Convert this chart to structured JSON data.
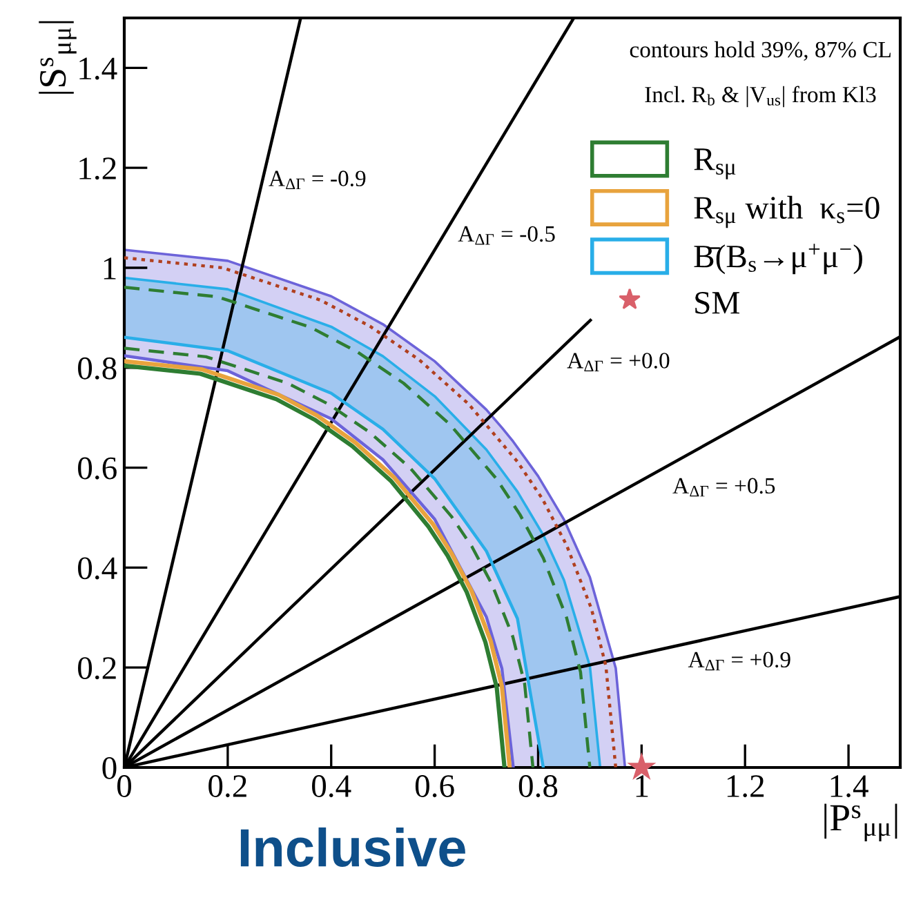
{
  "chart_data": {
    "type": "line",
    "xlabel": "|P$^{s}$$_{μμ}$|",
    "ylabel": "|S$^{s}$$_{μμ}$|",
    "subtitle": "Inclusive",
    "xlim": [
      0,
      1.5
    ],
    "ylim": [
      0,
      1.5
    ],
    "xticks": [
      0,
      0.2,
      0.4,
      0.6,
      0.8,
      1,
      1.2,
      1.4
    ],
    "yticks": [
      0,
      0.2,
      0.4,
      0.6,
      0.8,
      1,
      1.2,
      1.4
    ],
    "legend": "top right",
    "annotations": [
      "contours hold 39%, 87% CL",
      "Incl. R$_{b}$ & |V$_{us}$| from Kl3",
      "A$_{ΔΓ}$ = -0.9",
      "A$_{ΔΓ}$ = -0.5",
      "A$_{ΔΓ}$ = +0.0",
      "A$_{ΔΓ}$ = +0.5",
      "A$_{ΔΓ}$ = +0.9"
    ],
    "series": [
      {
        "name": "R$_{sμ}$",
        "color": "#2e7d32",
        "line_style": "solid",
        "x": [
          0,
          0.147,
          0.294,
          0.368,
          0.441,
          0.515,
          0.588,
          0.625,
          0.662,
          0.698,
          0.72,
          0.735
        ],
        "values": [
          0.804,
          0.788,
          0.737,
          0.696,
          0.643,
          0.574,
          0.482,
          0.424,
          0.351,
          0.251,
          0.16,
          0
        ]
      },
      {
        "name": "R$_{sμ}$ with  κ$_{s}$=0",
        "color": "#e8a33d",
        "line_style": "solid",
        "x": [
          0,
          0.149,
          0.298,
          0.373,
          0.447,
          0.522,
          0.596,
          0.633,
          0.671,
          0.708,
          0.73,
          0.745
        ],
        "values": [
          0.813,
          0.797,
          0.746,
          0.704,
          0.65,
          0.58,
          0.488,
          0.428,
          0.354,
          0.254,
          0.162,
          0
        ]
      },
      {
        "name": "B̄(B$_{s}$→μ$^{+}$μ$^{−}$)",
        "color": "#29aee8",
        "line_style": "solid",
        "x": [
          0,
          0.2,
          0.4,
          0.5,
          0.6,
          0.7,
          0.76,
          0.81,
          0.85,
          0.9,
          0.92
        ],
        "lower": [
          0.861,
          0.834,
          0.749,
          0.677,
          0.578,
          0.433,
          0.298,
          0,
          0,
          0,
          0
        ],
        "upper": [
          0.98,
          0.957,
          0.882,
          0.823,
          0.743,
          0.636,
          0.552,
          0.465,
          0.375,
          0.203,
          0
        ],
        "values": [
          0.98,
          0.957,
          0.882,
          0.823,
          0.743,
          0.636,
          0.552,
          0.465,
          0.375,
          0.203,
          0
        ]
      },
      {
        "color": "#29aee8",
        "line_style": "solid",
        "x": [
          0,
          0.2,
          0.4,
          0.5,
          0.6,
          0.7,
          0.76,
          0.81
        ],
        "values": [
          0.861,
          0.834,
          0.749,
          0.677,
          0.578,
          0.433,
          0.298,
          0
        ]
      },
      {
        "color": "#6c63d9",
        "line_style": "solid",
        "x": [
          0,
          0.2,
          0.4,
          0.5,
          0.6,
          0.7,
          0.73,
          0.752,
          0.8,
          0.85,
          0.9,
          0.95,
          0.968
        ],
        "lower": [
          0.824,
          0.794,
          0.698,
          0.616,
          0.497,
          0.301,
          0.198,
          0,
          0,
          0,
          0,
          0,
          0
        ],
        "upper": [
          1.036,
          1.014,
          0.943,
          0.887,
          0.813,
          0.716,
          0.68,
          0.652,
          0.583,
          0.496,
          0.381,
          0.199,
          0
        ],
        "values": [
          1.036,
          1.014,
          0.943,
          0.887,
          0.813,
          0.716,
          0.68,
          0.652,
          0.583,
          0.496,
          0.381,
          0.199,
          0
        ]
      },
      {
        "color": "#6c63d9",
        "line_style": "solid",
        "x": [
          0,
          0.2,
          0.4,
          0.5,
          0.6,
          0.7,
          0.73,
          0.752
        ],
        "values": [
          0.824,
          0.794,
          0.698,
          0.616,
          0.497,
          0.301,
          0.198,
          0
        ]
      },
      {
        "color": "#b0401f",
        "line_style": "dotted",
        "x": [
          0,
          0.19,
          0.38,
          0.475,
          0.57,
          0.665,
          0.76,
          0.808,
          0.855,
          0.903,
          0.931,
          0.95
        ],
        "values": [
          1.02,
          1.0,
          0.935,
          0.883,
          0.816,
          0.728,
          0.612,
          0.538,
          0.445,
          0.318,
          0.203,
          0
        ]
      },
      {
        "color": "#2e7d32",
        "line_style": "dashed",
        "x": [
          0,
          0.18,
          0.36,
          0.45,
          0.54,
          0.63,
          0.72,
          0.765,
          0.81,
          0.855,
          0.882,
          0.9
        ],
        "values": [
          0.961,
          0.942,
          0.881,
          0.832,
          0.769,
          0.686,
          0.577,
          0.506,
          0.419,
          0.3,
          0.191,
          0
        ]
      },
      {
        "color": "#2e7d32",
        "line_style": "dashed",
        "x": [
          0,
          0.158,
          0.316,
          0.395,
          0.474,
          0.553,
          0.632,
          0.672,
          0.711,
          0.751,
          0.774,
          0.79
        ],
        "values": [
          0.839,
          0.822,
          0.769,
          0.727,
          0.671,
          0.599,
          0.503,
          0.442,
          0.366,
          0.262,
          0.167,
          0
        ]
      },
      {
        "color": "#000000",
        "line_style": "solid",
        "x": [
          0,
          0.341
        ],
        "values": [
          0,
          1.5
        ]
      },
      {
        "color": "#000000",
        "line_style": "solid",
        "x": [
          0,
          0.869
        ],
        "values": [
          0,
          1.5
        ]
      },
      {
        "color": "#000000",
        "line_style": "solid",
        "x": [
          0,
          0.901
        ],
        "values": [
          0,
          0.895
        ]
      },
      {
        "color": "#000000",
        "line_style": "solid",
        "x": [
          0,
          1.5
        ],
        "values": [
          0,
          0.862
        ]
      },
      {
        "color": "#000000",
        "line_style": "solid",
        "x": [
          0,
          1.5
        ],
        "values": [
          0,
          0.342
        ]
      },
      {
        "type": "scatter",
        "name": "SM",
        "color": "#d9606a",
        "marker": "star",
        "x": [
          1
        ],
        "values": [
          0
        ]
      }
    ]
  }
}
